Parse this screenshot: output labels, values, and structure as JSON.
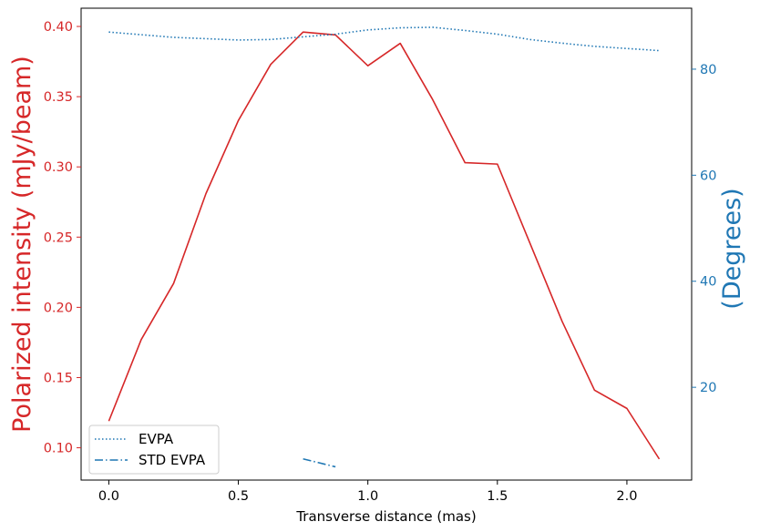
{
  "chart_data": {
    "type": "line",
    "xlabel": "Transverse distance (mas)",
    "ylabel_left": "Polarized intensity (mJy/beam)",
    "ylabel_right": "(Degrees)",
    "xlim": [
      -0.107,
      2.25
    ],
    "ylim_left": [
      0.077,
      0.413
    ],
    "ylim_right": [
      2.5,
      91.5
    ],
    "x_ticks": [
      0.0,
      0.5,
      1.0,
      1.5,
      2.0
    ],
    "x_tick_labels": [
      "0.0",
      "0.5",
      "1.0",
      "1.5",
      "2.0"
    ],
    "y_left_ticks": [
      0.1,
      0.15,
      0.2,
      0.25,
      0.3,
      0.35,
      0.4
    ],
    "y_left_tick_labels": [
      "0.10",
      "0.15",
      "0.20",
      "0.25",
      "0.30",
      "0.35",
      "0.40"
    ],
    "y_right_ticks": [
      20,
      40,
      60,
      80
    ],
    "y_right_tick_labels": [
      "20",
      "40",
      "60",
      "80"
    ],
    "grid": false,
    "legend_position": "lower-left",
    "series": [
      {
        "name": "",
        "axis": "left",
        "style": "solid",
        "color": "#d62728",
        "x": [
          0.0,
          0.125,
          0.25,
          0.375,
          0.5,
          0.625,
          0.75,
          0.875,
          1.0,
          1.125,
          1.25,
          1.375,
          1.5,
          1.625,
          1.75,
          1.875,
          2.0,
          2.125
        ],
        "y": [
          0.119,
          0.177,
          0.217,
          0.281,
          0.333,
          0.373,
          0.396,
          0.394,
          0.372,
          0.388,
          0.348,
          0.303,
          0.302,
          0.246,
          0.19,
          0.141,
          0.128,
          0.092
        ]
      },
      {
        "name": "EVPA",
        "axis": "right",
        "style": "dotted",
        "color": "#1f77b4",
        "x": [
          0.0,
          0.25,
          0.5,
          0.625,
          0.75,
          0.875,
          1.0,
          1.125,
          1.25,
          1.375,
          1.5,
          1.625,
          1.75,
          1.875,
          2.0,
          2.125
        ],
        "y": [
          87.0,
          86.0,
          85.5,
          85.6,
          86.1,
          86.6,
          87.4,
          87.8,
          87.9,
          87.3,
          86.6,
          85.6,
          84.9,
          84.3,
          83.9,
          83.5
        ]
      },
      {
        "name": "STD EVPA",
        "axis": "right",
        "style": "dashdot",
        "color": "#1f77b4",
        "x": [
          0.75,
          0.875
        ],
        "y": [
          6.5,
          5.0
        ]
      }
    ]
  },
  "colors": {
    "left_axis": "#d62728",
    "right_axis": "#1f77b4"
  }
}
